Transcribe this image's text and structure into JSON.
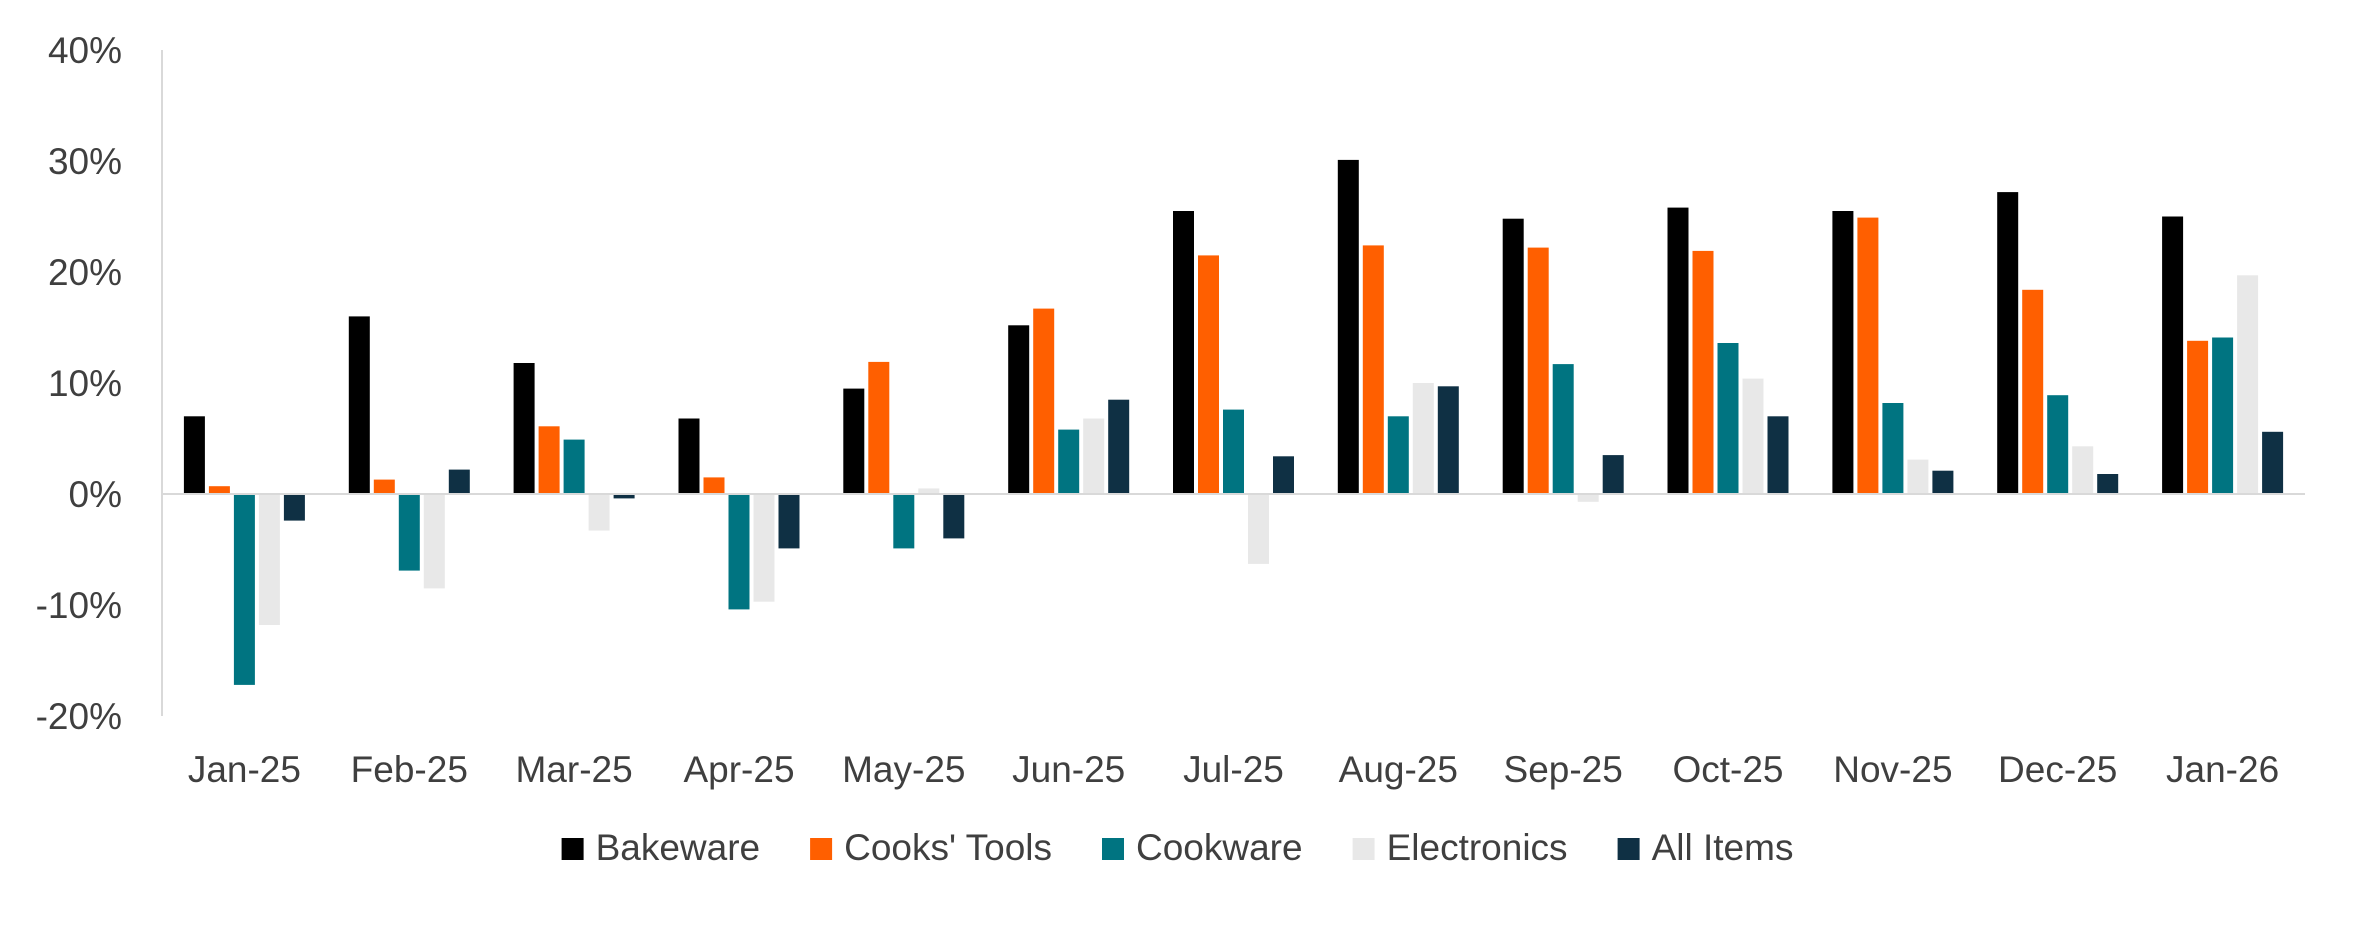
{
  "chart_data": {
    "type": "bar",
    "title": "",
    "xlabel": "",
    "ylabel": "",
    "ylim": [
      -20,
      40
    ],
    "y_ticks": [
      40,
      30,
      20,
      10,
      0,
      -10,
      -20
    ],
    "y_tick_labels": [
      "40%",
      "30%",
      "20%",
      "10%",
      "0%",
      "-10%",
      "-20%"
    ],
    "grid": false,
    "legend_position": "bottom",
    "categories": [
      "Jan-25",
      "Feb-25",
      "Mar-25",
      "Apr-25",
      "May-25",
      "Jun-25",
      "Jul-25",
      "Aug-25",
      "Sep-25",
      "Oct-25",
      "Nov-25",
      "Dec-25",
      "Jan-26"
    ],
    "series": [
      {
        "name": "Bakeware",
        "color": "#000000",
        "values": [
          7.0,
          16.0,
          11.8,
          6.8,
          9.5,
          15.2,
          25.5,
          30.1,
          24.8,
          25.8,
          25.5,
          27.2,
          25.0
        ]
      },
      {
        "name": "Cooks' Tools",
        "color": "#ff5f00",
        "values": [
          0.7,
          1.3,
          6.1,
          1.5,
          11.9,
          16.7,
          21.5,
          22.4,
          22.2,
          21.9,
          24.9,
          18.4,
          13.8
        ]
      },
      {
        "name": "Cookware",
        "color": "#007481",
        "values": [
          -17.2,
          -6.9,
          4.9,
          -10.4,
          -4.9,
          5.8,
          7.6,
          7.0,
          11.7,
          13.6,
          8.2,
          8.9,
          14.1
        ]
      },
      {
        "name": "Electronics",
        "color": "#e8e8e8",
        "values": [
          -11.8,
          -8.5,
          -3.3,
          -9.7,
          0.5,
          6.8,
          -6.3,
          10.0,
          -0.7,
          10.4,
          3.1,
          4.3,
          19.7
        ]
      },
      {
        "name": "All Items",
        "color": "#0f3044",
        "values": [
          -2.4,
          2.2,
          -0.4,
          -4.9,
          -4.0,
          8.5,
          3.4,
          9.7,
          3.5,
          7.0,
          2.1,
          1.8,
          5.6
        ]
      }
    ]
  }
}
